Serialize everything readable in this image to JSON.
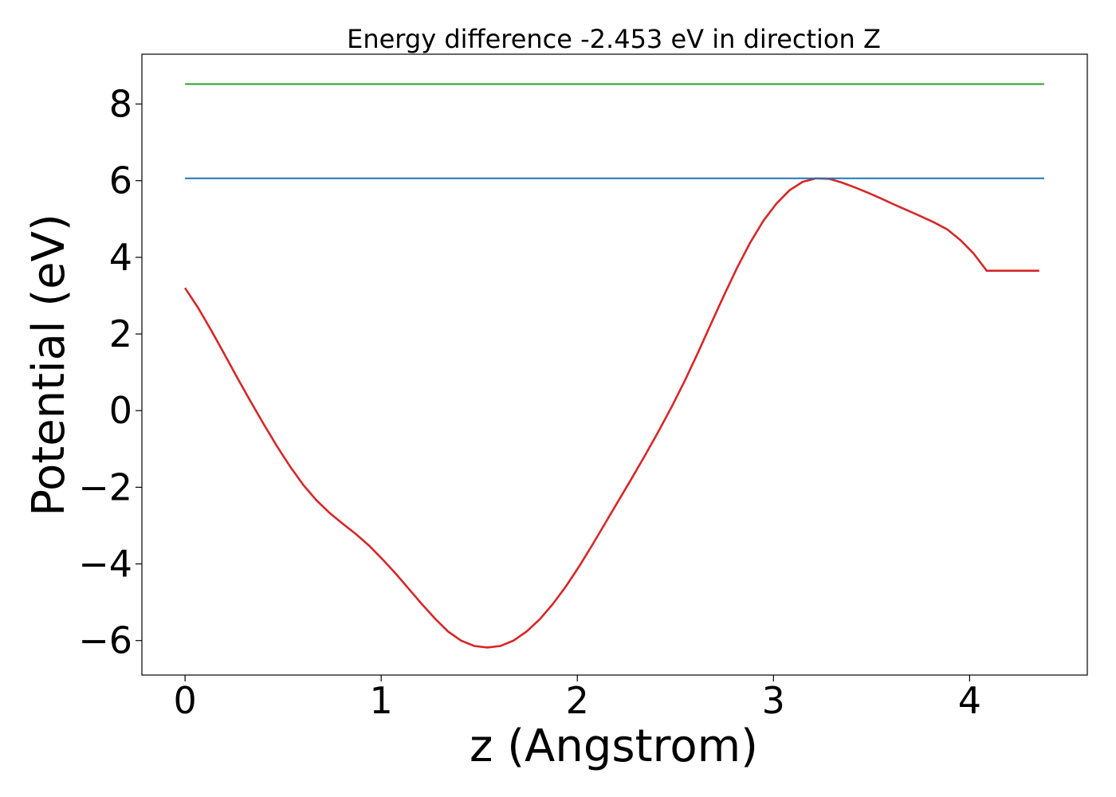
{
  "chart_data": {
    "type": "line",
    "title": "Energy difference -2.453 eV in direction Z",
    "xlabel": "z (Angstrom)",
    "ylabel": "Potential (eV)",
    "xlim": [
      -0.22,
      4.6
    ],
    "ylim": [
      -6.9,
      9.3
    ],
    "x_ticks": [
      0,
      1,
      2,
      3,
      4
    ],
    "x_tick_labels": [
      "0",
      "1",
      "2",
      "3",
      "4"
    ],
    "y_ticks": [
      -6,
      -4,
      -2,
      0,
      2,
      4,
      6,
      8
    ],
    "y_tick_labels": [
      "−6",
      "−4",
      "−2",
      "0",
      "2",
      "4",
      "6",
      "8"
    ],
    "grid": false,
    "legend": "none",
    "series": [
      {
        "color": "#d62728",
        "x": [
          0.0,
          0.067,
          0.134,
          0.201,
          0.268,
          0.335,
          0.402,
          0.469,
          0.536,
          0.603,
          0.67,
          0.737,
          0.804,
          0.871,
          0.938,
          1.005,
          1.072,
          1.139,
          1.206,
          1.273,
          1.34,
          1.407,
          1.474,
          1.541,
          1.608,
          1.675,
          1.742,
          1.809,
          1.876,
          1.943,
          2.01,
          2.077,
          2.144,
          2.211,
          2.278,
          2.345,
          2.412,
          2.479,
          2.546,
          2.613,
          2.68,
          2.747,
          2.814,
          2.881,
          2.948,
          3.015,
          3.082,
          3.149,
          3.216,
          3.283,
          3.35,
          3.417,
          3.484,
          3.551,
          3.618,
          3.685,
          3.752,
          3.819,
          3.886,
          3.953,
          4.02,
          4.087,
          4.154,
          4.221,
          4.288,
          4.355
        ],
        "y": [
          3.2,
          2.68,
          2.09,
          1.47,
          0.84,
          0.23,
          -0.36,
          -0.93,
          -1.46,
          -1.94,
          -2.34,
          -2.67,
          -2.95,
          -3.22,
          -3.52,
          -3.87,
          -4.24,
          -4.64,
          -5.04,
          -5.42,
          -5.76,
          -6.0,
          -6.14,
          -6.18,
          -6.14,
          -6.0,
          -5.76,
          -5.44,
          -5.04,
          -4.58,
          -4.06,
          -3.5,
          -2.92,
          -2.34,
          -1.76,
          -1.17,
          -0.56,
          0.08,
          0.76,
          1.49,
          2.25,
          3.0,
          3.72,
          4.38,
          4.95,
          5.4,
          5.75,
          5.97,
          6.06,
          6.05,
          5.95,
          5.82,
          5.68,
          5.53,
          5.37,
          5.22,
          5.07,
          4.91,
          4.73,
          4.45,
          4.1,
          3.65,
          3.65,
          3.65,
          3.65,
          3.65
        ]
      },
      {
        "color": "#1f77b4",
        "x": [
          0.0,
          4.38
        ],
        "y": [
          6.06,
          6.06
        ]
      },
      {
        "color": "#2ca02c",
        "x": [
          0.0,
          4.38
        ],
        "y": [
          8.52,
          8.52
        ]
      }
    ]
  }
}
